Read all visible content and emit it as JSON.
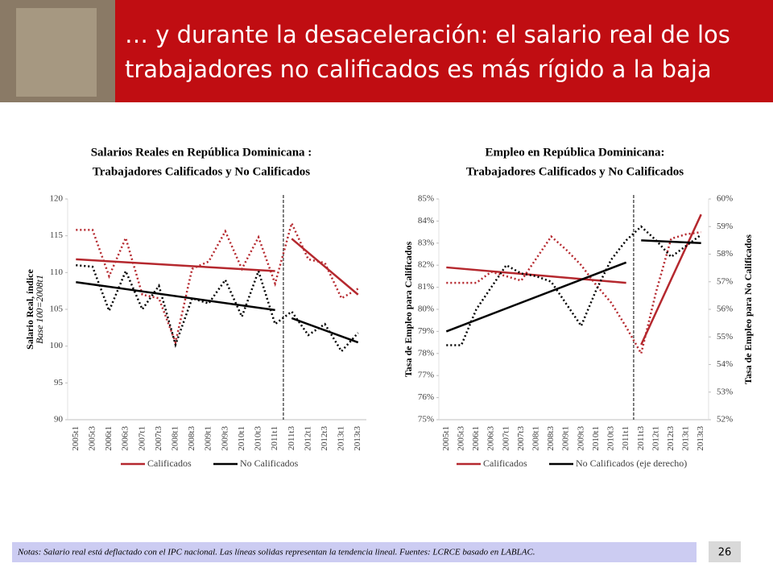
{
  "slide": {
    "title": [
      "… y durante la desaceleración: el salario real de los",
      "trabajadores no calificados es más rígido a la baja"
    ],
    "note": "Notas: Salario real está deflactado con el IPC nacional.  Las líneas solidas representan la tendencia lineal. Fuentes: LCRCE basado en LABLAC.",
    "page": "26"
  },
  "chart_data": [
    {
      "type": "line",
      "title": [
        "Salarios Reales en República Dominicana :",
        "Trabajadores Calificados y No Calificados"
      ],
      "y_label": "Salario Real, índice",
      "y_sublabel": "Base 100=2008t1",
      "categories": [
        "2005t1",
        "2005t3",
        "2006t1",
        "2006t3",
        "2007t1",
        "2007t3",
        "2008t1",
        "2008t3",
        "2009t1",
        "2009t3",
        "2010t1",
        "2010t3",
        "2011t1",
        "2011t3",
        "2012t1",
        "2012t3",
        "2013t1",
        "2013t3"
      ],
      "ylim": [
        90,
        120
      ],
      "yticks": [
        90,
        95,
        100,
        105,
        110,
        115,
        120
      ],
      "legend": "bottom",
      "line_style": "dotted",
      "series": [
        {
          "name": "Calificados",
          "color": "#b5282e",
          "axis": "y",
          "values": [
            115.8,
            115.8,
            109.5,
            114.7,
            107,
            106.5,
            100.5,
            110.5,
            111.5,
            115.6,
            110.5,
            114.8,
            108.5,
            116.7,
            111.8,
            111.3,
            106.5,
            107.8
          ],
          "trend": [
            {
              "from": "2005t1",
              "to": "2011t1",
              "values": [
                111.8,
                110.2
              ]
            },
            {
              "from": "2011t3",
              "to": "2013t3",
              "values": [
                114.6,
                107
              ]
            }
          ]
        },
        {
          "name": "No Calificados",
          "color": "#000000",
          "axis": "y",
          "values": [
            111,
            110.8,
            104.8,
            110.2,
            105,
            108.2,
            100.2,
            106.5,
            105.8,
            109,
            104,
            110.2,
            103,
            104.7,
            101.5,
            103,
            99.3,
            101.8
          ],
          "trend": [
            {
              "from": "2005t1",
              "to": "2011t1",
              "values": [
                108.7,
                104.9
              ]
            },
            {
              "from": "2011t3",
              "to": "2013t3",
              "values": [
                103.8,
                100.5
              ]
            }
          ]
        }
      ]
    },
    {
      "type": "line",
      "title": [
        "Empleo en República Dominicana:",
        "Trabajadores Calificados y No Calificados"
      ],
      "y_label": "Tasa de Empleo para Calificados",
      "y2_label": "Tasa de Empleo para No Calificados",
      "categories": [
        "2005t1",
        "2005t3",
        "2006t1",
        "2006t3",
        "2007t1",
        "2007t3",
        "2008t1",
        "2008t3",
        "2009t1",
        "2009t3",
        "2010t1",
        "2010t3",
        "2011t1",
        "2011t3",
        "2012t1",
        "2012t3",
        "2013t1",
        "2013t3"
      ],
      "ylim": [
        75,
        85
      ],
      "yticks": [
        {
          "value": 75,
          "label": "75%"
        },
        {
          "value": 76,
          "label": "76%"
        },
        {
          "value": 77,
          "label": "77%"
        },
        {
          "value": 78,
          "label": "78%"
        },
        {
          "value": 79,
          "label": "79%"
        },
        {
          "value": 80,
          "label": "80%"
        },
        {
          "value": 81,
          "label": "81%"
        },
        {
          "value": 82,
          "label": "82%"
        },
        {
          "value": 83,
          "label": "83%"
        },
        {
          "value": 84,
          "label": "84%"
        },
        {
          "value": 85,
          "label": "85%"
        }
      ],
      "y2lim": [
        52,
        60
      ],
      "y2ticks": [
        {
          "value": 52,
          "label": "52%"
        },
        {
          "value": 53,
          "label": "53%"
        },
        {
          "value": 54,
          "label": "54%"
        },
        {
          "value": 55,
          "label": "55%"
        },
        {
          "value": 56,
          "label": "56%"
        },
        {
          "value": 57,
          "label": "57%"
        },
        {
          "value": 58,
          "label": "58%"
        },
        {
          "value": 59,
          "label": "59%"
        },
        {
          "value": 60,
          "label": "60%"
        }
      ],
      "legend": "bottom",
      "line_style": "dotted",
      "series": [
        {
          "name": "Calificados",
          "color": "#b5282e",
          "axis": "y",
          "values": [
            81.2,
            81.2,
            81.2,
            81.7,
            81.5,
            81.3,
            82.3,
            83.3,
            82.7,
            82.0,
            81.1,
            80.3,
            79.2,
            78.0,
            80.8,
            83.2,
            83.4,
            83.5
          ],
          "trend": [
            {
              "from": "2005t1",
              "to": "2011t1",
              "values": [
                81.9,
                81.2
              ]
            },
            {
              "from": "2011t3",
              "to": "2013t3",
              "values": [
                78.4,
                84.3
              ]
            }
          ]
        },
        {
          "name": "No Calificados (eje derecho)",
          "color": "#000000",
          "axis": "y2",
          "values": [
            54.7,
            54.7,
            56.0,
            56.8,
            57.6,
            57.3,
            57.2,
            57.0,
            56.2,
            55.4,
            56.7,
            57.8,
            58.5,
            59.0,
            58.5,
            57.9,
            58.3,
            58.7
          ],
          "trend": [
            {
              "from": "2005t1",
              "to": "2011t1",
              "values": [
                55.2,
                57.7
              ]
            },
            {
              "from": "2011t3",
              "to": "2013t3",
              "values": [
                58.5,
                58.4
              ]
            }
          ]
        }
      ]
    }
  ]
}
